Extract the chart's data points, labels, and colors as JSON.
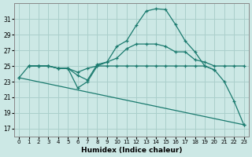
{
  "xlabel": "Humidex (Indice chaleur)",
  "background_color": "#cce8e5",
  "grid_color": "#aacfcb",
  "line_color": "#1a7a6e",
  "xlim": [
    -0.5,
    23.5
  ],
  "ylim": [
    16.0,
    33.0
  ],
  "yticks": [
    17,
    19,
    21,
    23,
    25,
    27,
    29,
    31
  ],
  "xticks": [
    0,
    1,
    2,
    3,
    4,
    5,
    6,
    7,
    8,
    9,
    10,
    11,
    12,
    13,
    14,
    15,
    16,
    17,
    18,
    19,
    20,
    21,
    22,
    23
  ],
  "lines": [
    {
      "x": [
        0,
        1,
        2,
        3,
        4,
        5,
        6,
        7,
        8,
        9,
        10,
        11,
        12,
        13,
        14,
        15,
        16,
        17,
        18,
        19,
        20,
        21,
        22,
        23
      ],
      "y": [
        23.5,
        25.0,
        25.0,
        25.0,
        24.7,
        24.7,
        22.2,
        23.0,
        25.0,
        25.5,
        27.5,
        28.2,
        30.2,
        32.0,
        32.3,
        32.2,
        30.3,
        28.2,
        26.8,
        25.0,
        24.5,
        23.0,
        20.5,
        17.5
      ]
    },
    {
      "x": [
        1,
        2,
        3,
        4,
        5,
        6,
        7,
        8,
        9,
        10,
        11,
        12,
        13,
        14,
        15,
        16,
        17,
        18,
        19,
        20
      ],
      "y": [
        25.0,
        25.0,
        25.0,
        24.7,
        24.7,
        24.2,
        24.7,
        25.0,
        25.0,
        25.0,
        25.0,
        25.0,
        25.0,
        25.0,
        25.0,
        25.0,
        25.0,
        25.0,
        25.0,
        24.5
      ]
    },
    {
      "x": [
        1,
        2,
        3,
        4,
        5,
        6,
        7,
        8,
        9,
        10,
        11,
        12,
        13,
        14,
        15,
        16,
        17,
        18,
        19,
        20,
        21,
        22,
        23
      ],
      "y": [
        25.0,
        25.0,
        25.0,
        24.7,
        24.7,
        23.8,
        23.2,
        25.2,
        25.5,
        26.0,
        27.2,
        27.8,
        27.8,
        27.8,
        27.5,
        26.8,
        26.8,
        25.8,
        25.5,
        25.0,
        25.0,
        25.0,
        25.0
      ]
    },
    {
      "x": [
        0,
        23
      ],
      "y": [
        23.5,
        17.5
      ]
    }
  ]
}
